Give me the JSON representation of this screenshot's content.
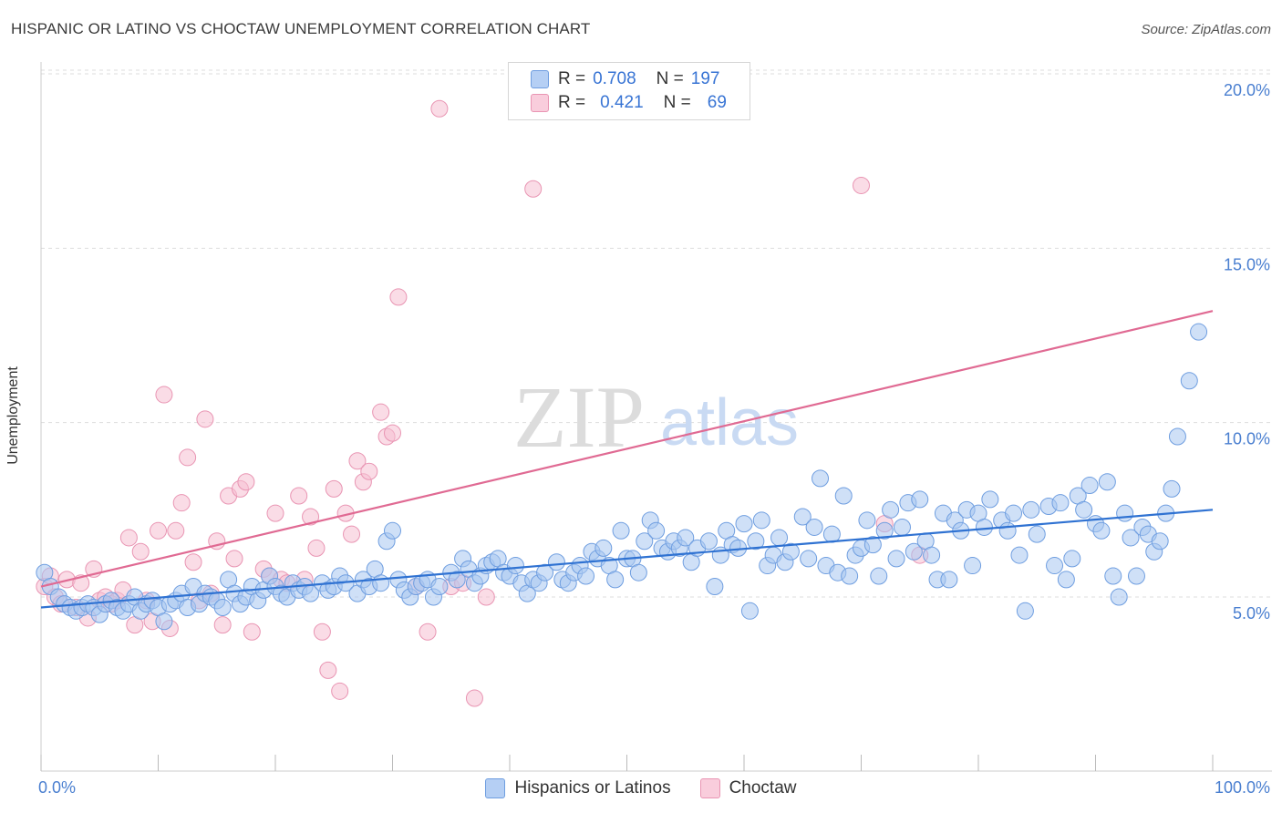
{
  "header": {
    "title": "HISPANIC OR LATINO VS CHOCTAW UNEMPLOYMENT CORRELATION CHART",
    "source": "Source: ZipAtlas.com"
  },
  "watermark": {
    "zip": "ZIP",
    "atlas": "atlas"
  },
  "legend": {
    "rows": [
      {
        "r_label": "R =",
        "r_value": "0.708",
        "n_label": "N =",
        "n_value": "197"
      },
      {
        "r_label": "R =",
        "r_value": "0.421",
        "n_label": "N =",
        "n_value": "69"
      }
    ]
  },
  "bottom_legend": {
    "items": [
      {
        "label": "Hispanics or Latinos"
      },
      {
        "label": "Choctaw"
      }
    ]
  },
  "colors": {
    "blue_fill": "#a8c6f0",
    "blue_stroke": "#6f9ee0",
    "blue_line": "#2f72d2",
    "pink_fill": "#f6bfd1",
    "pink_stroke": "#e995b3",
    "pink_line": "#e06a93",
    "tick_text": "#4a7fd0",
    "grid": "#dddddd"
  },
  "chart_data": {
    "type": "scatter",
    "title": "HISPANIC OR LATINO VS CHOCTAW UNEMPLOYMENT CORRELATION CHART",
    "xlabel": "",
    "ylabel": "Unemployment",
    "xlim": [
      0,
      100
    ],
    "ylim": [
      0,
      20.7
    ],
    "x_ticks": [
      0,
      10,
      20,
      30,
      40,
      50,
      60,
      70,
      80,
      90,
      100
    ],
    "x_tick_labels": [
      "0.0%",
      "100.0%"
    ],
    "y_ticks": [
      5,
      10,
      15,
      20
    ],
    "y_tick_labels": [
      "5.0%",
      "10.0%",
      "15.0%",
      "20.0%"
    ],
    "grid": true,
    "legend_position": "top-center",
    "series": [
      {
        "name": "Hispanics or Latinos",
        "color": "#a8c6f0",
        "r": 0.708,
        "n": 197,
        "trend": [
          [
            0,
            4.7
          ],
          [
            100,
            7.5
          ]
        ],
        "points": [
          [
            0.3,
            5.7
          ],
          [
            0.8,
            5.3
          ],
          [
            1.5,
            5.0
          ],
          [
            2,
            4.8
          ],
          [
            2.5,
            4.7
          ],
          [
            3,
            4.6
          ],
          [
            3.5,
            4.7
          ],
          [
            4,
            4.8
          ],
          [
            4.5,
            4.7
          ],
          [
            5,
            4.5
          ],
          [
            5.5,
            4.8
          ],
          [
            6,
            4.9
          ],
          [
            6.5,
            4.7
          ],
          [
            7,
            4.6
          ],
          [
            7.5,
            4.8
          ],
          [
            8,
            5.0
          ],
          [
            8.5,
            4.6
          ],
          [
            9,
            4.8
          ],
          [
            9.5,
            4.9
          ],
          [
            10,
            4.7
          ],
          [
            10.5,
            4.3
          ],
          [
            11,
            4.8
          ],
          [
            11.5,
            4.9
          ],
          [
            12,
            5.1
          ],
          [
            12.5,
            4.7
          ],
          [
            13,
            5.3
          ],
          [
            13.5,
            4.8
          ],
          [
            14,
            5.1
          ],
          [
            14.5,
            5.0
          ],
          [
            15,
            4.9
          ],
          [
            15.5,
            4.7
          ],
          [
            16,
            5.5
          ],
          [
            16.5,
            5.1
          ],
          [
            17,
            4.8
          ],
          [
            17.5,
            5.0
          ],
          [
            18,
            5.3
          ],
          [
            18.5,
            4.9
          ],
          [
            19,
            5.2
          ],
          [
            19.5,
            5.6
          ],
          [
            20,
            5.3
          ],
          [
            20.5,
            5.1
          ],
          [
            21,
            5.0
          ],
          [
            21.5,
            5.4
          ],
          [
            22,
            5.2
          ],
          [
            22.5,
            5.3
          ],
          [
            23,
            5.1
          ],
          [
            24,
            5.4
          ],
          [
            24.5,
            5.2
          ],
          [
            25,
            5.3
          ],
          [
            25.5,
            5.6
          ],
          [
            26,
            5.4
          ],
          [
            27,
            5.1
          ],
          [
            27.5,
            5.5
          ],
          [
            28,
            5.3
          ],
          [
            28.5,
            5.8
          ],
          [
            29,
            5.4
          ],
          [
            29.5,
            6.6
          ],
          [
            30,
            6.9
          ],
          [
            30.5,
            5.5
          ],
          [
            31,
            5.2
          ],
          [
            31.5,
            5.0
          ],
          [
            32,
            5.3
          ],
          [
            32.5,
            5.4
          ],
          [
            33,
            5.5
          ],
          [
            33.5,
            5.0
          ],
          [
            34,
            5.3
          ],
          [
            35,
            5.7
          ],
          [
            35.5,
            5.5
          ],
          [
            36,
            6.1
          ],
          [
            36.5,
            5.8
          ],
          [
            37,
            5.4
          ],
          [
            37.5,
            5.6
          ],
          [
            38,
            5.9
          ],
          [
            38.5,
            6.0
          ],
          [
            39,
            6.1
          ],
          [
            39.5,
            5.7
          ],
          [
            40,
            5.6
          ],
          [
            40.5,
            5.9
          ],
          [
            41,
            5.4
          ],
          [
            41.5,
            5.1
          ],
          [
            42,
            5.5
          ],
          [
            42.5,
            5.4
          ],
          [
            43,
            5.7
          ],
          [
            44,
            6.0
          ],
          [
            44.5,
            5.5
          ],
          [
            45,
            5.4
          ],
          [
            45.5,
            5.7
          ],
          [
            46,
            5.9
          ],
          [
            46.5,
            5.6
          ],
          [
            47,
            6.3
          ],
          [
            47.5,
            6.1
          ],
          [
            48,
            6.4
          ],
          [
            48.5,
            5.9
          ],
          [
            49,
            5.5
          ],
          [
            49.5,
            6.9
          ],
          [
            50,
            6.1
          ],
          [
            50.5,
            6.1
          ],
          [
            51,
            5.7
          ],
          [
            51.5,
            6.6
          ],
          [
            52,
            7.2
          ],
          [
            52.5,
            6.9
          ],
          [
            53,
            6.4
          ],
          [
            53.5,
            6.3
          ],
          [
            54,
            6.6
          ],
          [
            54.5,
            6.4
          ],
          [
            55,
            6.7
          ],
          [
            55.5,
            6.0
          ],
          [
            56,
            6.4
          ],
          [
            57,
            6.6
          ],
          [
            57.5,
            5.3
          ],
          [
            58,
            6.2
          ],
          [
            58.5,
            6.9
          ],
          [
            59,
            6.5
          ],
          [
            59.5,
            6.4
          ],
          [
            60,
            7.1
          ],
          [
            60.5,
            4.6
          ],
          [
            61,
            6.6
          ],
          [
            61.5,
            7.2
          ],
          [
            62,
            5.9
          ],
          [
            62.5,
            6.2
          ],
          [
            63,
            6.7
          ],
          [
            63.5,
            6.0
          ],
          [
            64,
            6.3
          ],
          [
            65,
            7.3
          ],
          [
            65.5,
            6.1
          ],
          [
            66,
            7.0
          ],
          [
            66.5,
            8.4
          ],
          [
            67,
            5.9
          ],
          [
            67.5,
            6.8
          ],
          [
            68,
            5.7
          ],
          [
            68.5,
            7.9
          ],
          [
            69,
            5.6
          ],
          [
            69.5,
            6.2
          ],
          [
            70,
            6.4
          ],
          [
            70.5,
            7.2
          ],
          [
            71,
            6.5
          ],
          [
            71.5,
            5.6
          ],
          [
            72,
            6.9
          ],
          [
            72.5,
            7.5
          ],
          [
            73,
            6.1
          ],
          [
            73.5,
            7.0
          ],
          [
            74,
            7.7
          ],
          [
            74.5,
            6.3
          ],
          [
            75,
            7.8
          ],
          [
            75.5,
            6.6
          ],
          [
            76,
            6.2
          ],
          [
            76.5,
            5.5
          ],
          [
            77,
            7.4
          ],
          [
            77.5,
            5.5
          ],
          [
            78,
            7.2
          ],
          [
            78.5,
            6.9
          ],
          [
            79,
            7.5
          ],
          [
            79.5,
            5.9
          ],
          [
            80,
            7.4
          ],
          [
            80.5,
            7.0
          ],
          [
            81,
            7.8
          ],
          [
            82,
            7.2
          ],
          [
            82.5,
            6.9
          ],
          [
            83,
            7.4
          ],
          [
            83.5,
            6.2
          ],
          [
            84,
            4.6
          ],
          [
            84.5,
            7.5
          ],
          [
            85,
            6.8
          ],
          [
            86,
            7.6
          ],
          [
            86.5,
            5.9
          ],
          [
            87,
            7.7
          ],
          [
            87.5,
            5.5
          ],
          [
            88,
            6.1
          ],
          [
            88.5,
            7.9
          ],
          [
            89,
            7.5
          ],
          [
            89.5,
            8.2
          ],
          [
            90,
            7.1
          ],
          [
            90.5,
            6.9
          ],
          [
            91,
            8.3
          ],
          [
            91.5,
            5.6
          ],
          [
            92,
            5.0
          ],
          [
            92.5,
            7.4
          ],
          [
            93,
            6.7
          ],
          [
            93.5,
            5.6
          ],
          [
            94,
            7.0
          ],
          [
            94.5,
            6.8
          ],
          [
            95,
            6.3
          ],
          [
            95.5,
            6.6
          ],
          [
            96,
            7.4
          ],
          [
            96.5,
            8.1
          ],
          [
            97,
            9.6
          ],
          [
            98,
            11.2
          ],
          [
            98.8,
            12.6
          ]
        ]
      },
      {
        "name": "Choctaw",
        "color": "#f6bfd1",
        "r": 0.421,
        "n": 69,
        "trend": [
          [
            0,
            5.3
          ],
          [
            100,
            13.2
          ]
        ],
        "points": [
          [
            0.3,
            5.3
          ],
          [
            0.8,
            5.6
          ],
          [
            1.2,
            5.0
          ],
          [
            1.7,
            4.8
          ],
          [
            2.2,
            5.5
          ],
          [
            3,
            4.7
          ],
          [
            3.4,
            5.4
          ],
          [
            4,
            4.4
          ],
          [
            4.5,
            5.8
          ],
          [
            5,
            4.9
          ],
          [
            5.5,
            5.0
          ],
          [
            6,
            4.8
          ],
          [
            6.5,
            4.9
          ],
          [
            7,
            5.2
          ],
          [
            7.5,
            6.7
          ],
          [
            8,
            4.2
          ],
          [
            8.5,
            6.3
          ],
          [
            9,
            4.9
          ],
          [
            9.5,
            4.3
          ],
          [
            10,
            6.9
          ],
          [
            10.5,
            10.8
          ],
          [
            11,
            4.1
          ],
          [
            11.5,
            6.9
          ],
          [
            12,
            7.7
          ],
          [
            12.5,
            9.0
          ],
          [
            13,
            6.0
          ],
          [
            13.5,
            4.9
          ],
          [
            14,
            10.1
          ],
          [
            14.5,
            5.1
          ],
          [
            15,
            6.6
          ],
          [
            15.5,
            4.2
          ],
          [
            16,
            7.9
          ],
          [
            16.5,
            6.1
          ],
          [
            17,
            8.1
          ],
          [
            17.5,
            8.3
          ],
          [
            18,
            4.0
          ],
          [
            19,
            5.8
          ],
          [
            19.5,
            5.6
          ],
          [
            20,
            7.4
          ],
          [
            20.5,
            5.5
          ],
          [
            21,
            5.4
          ],
          [
            22,
            7.9
          ],
          [
            22.5,
            5.5
          ],
          [
            23,
            7.3
          ],
          [
            23.5,
            6.4
          ],
          [
            24,
            4.0
          ],
          [
            24.5,
            2.9
          ],
          [
            25,
            8.1
          ],
          [
            25.5,
            2.3
          ],
          [
            26,
            7.4
          ],
          [
            26.5,
            6.8
          ],
          [
            27,
            8.9
          ],
          [
            27.5,
            8.3
          ],
          [
            28,
            8.6
          ],
          [
            29,
            10.3
          ],
          [
            29.5,
            9.6
          ],
          [
            30,
            9.7
          ],
          [
            30.5,
            13.6
          ],
          [
            32,
            5.3
          ],
          [
            33,
            4.0
          ],
          [
            34,
            19.0
          ],
          [
            35,
            5.3
          ],
          [
            36,
            5.4
          ],
          [
            37,
            2.1
          ],
          [
            38,
            5.0
          ],
          [
            42,
            16.7
          ],
          [
            70,
            16.8
          ],
          [
            72,
            7.1
          ],
          [
            75,
            6.2
          ]
        ]
      }
    ]
  }
}
